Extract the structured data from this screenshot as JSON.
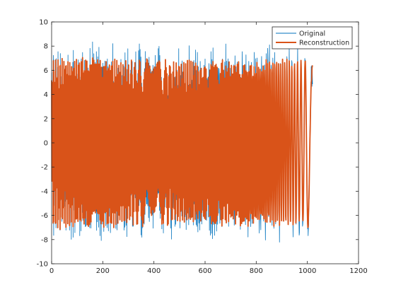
{
  "chart_data": {
    "type": "line",
    "title": "",
    "xlabel": "",
    "ylabel": "",
    "xlim": [
      0,
      1200
    ],
    "ylim": [
      -10,
      10
    ],
    "x_ticks": [
      0,
      200,
      400,
      600,
      800,
      1000,
      1200
    ],
    "y_ticks": [
      -10,
      -8,
      -6,
      -4,
      -2,
      0,
      2,
      4,
      6,
      8,
      10
    ],
    "grid": false,
    "legend_position": "top-right",
    "sample_count": 1024,
    "series": [
      {
        "name": "Original",
        "color": "#0072BD",
        "line_width": "thin",
        "description_points": {
          "x": [
            0,
            60,
            160,
            200,
            250,
            290,
            350,
            430,
            500,
            560,
            600,
            700,
            780,
            830,
            880,
            950,
            1020
          ],
          "y": [
            1.5,
            -3.5,
            6.5,
            7.0,
            -6.5,
            7.0,
            -7.5,
            8.5,
            -4.0,
            -8.5,
            -7.0,
            1.0,
            6.5,
            5.8,
            3.8,
            1.0,
            0.5
          ]
        },
        "noise_amplitude": 1.6
      },
      {
        "name": "Reconstruction",
        "color": "#D95319",
        "line_width": "thick",
        "noise_amplitude": 0.35
      }
    ]
  },
  "legend": {
    "items": [
      {
        "label": "Original",
        "color": "#0072BD"
      },
      {
        "label": "Reconstruction",
        "color": "#D95319"
      }
    ]
  },
  "axes": {
    "x_tick_labels": [
      "0",
      "200",
      "400",
      "600",
      "800",
      "1000",
      "1200"
    ],
    "y_tick_labels": [
      "-10",
      "-8",
      "-6",
      "-4",
      "-2",
      "0",
      "2",
      "4",
      "6",
      "8",
      "10"
    ]
  }
}
